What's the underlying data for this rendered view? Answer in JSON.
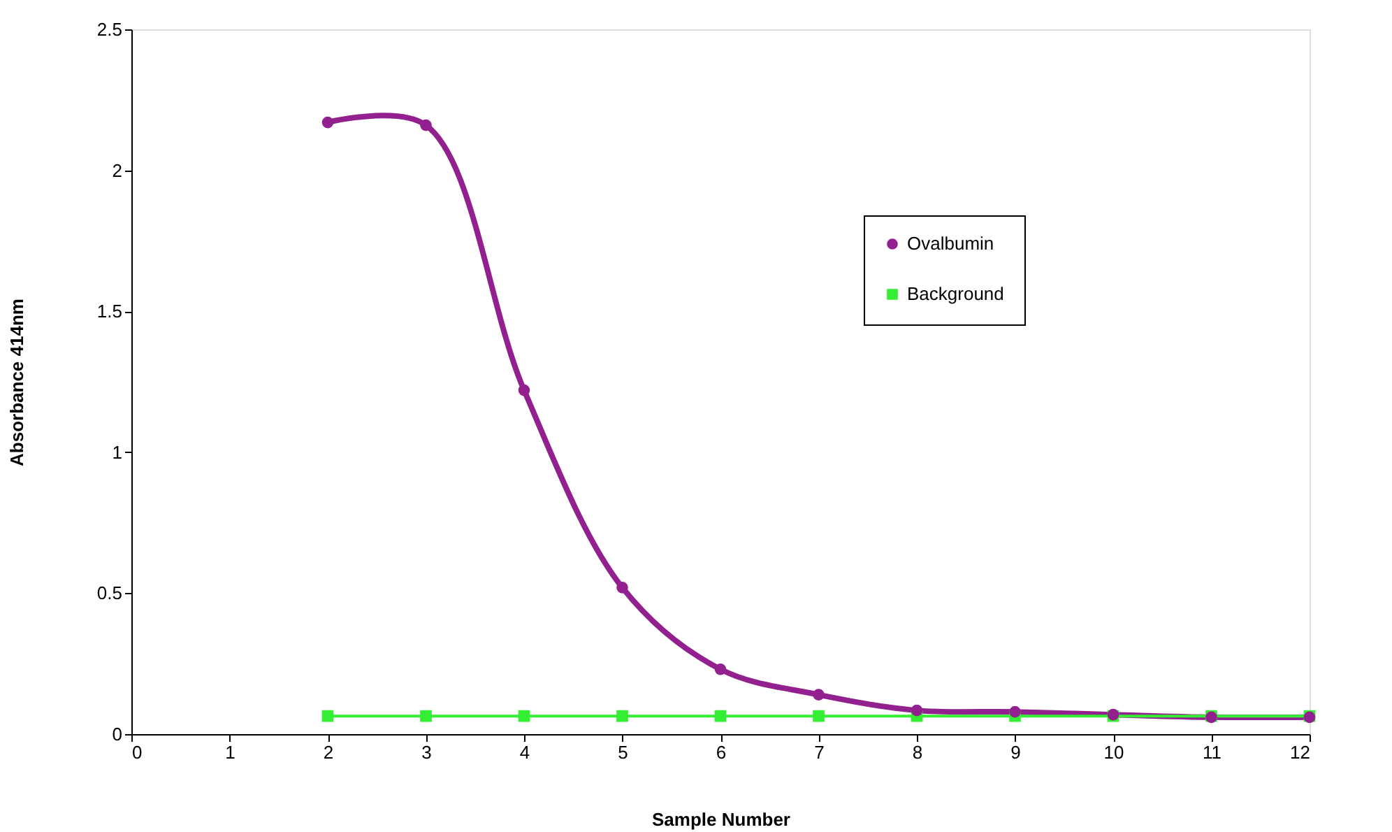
{
  "chart_data": {
    "type": "line",
    "xlabel": "Sample Number",
    "ylabel": "Absorbance 414nm",
    "x": [
      2,
      3,
      4,
      5,
      6,
      7,
      8,
      9,
      10,
      11,
      12
    ],
    "series": [
      {
        "name": "Ovalbumin",
        "color": "#93208f",
        "marker": "circle",
        "values": [
          2.17,
          2.16,
          1.22,
          0.52,
          0.23,
          0.14,
          0.084,
          0.079,
          0.069,
          0.06,
          0.06
        ]
      },
      {
        "name": "Background",
        "color": "#33ee33",
        "marker": "square",
        "values": [
          0.064,
          0.064,
          0.064,
          0.064,
          0.064,
          0.064,
          0.064,
          0.064,
          0.064,
          0.064,
          0.064
        ]
      }
    ],
    "xlim": [
      0,
      12
    ],
    "xticks": [
      0,
      1,
      2,
      3,
      4,
      5,
      6,
      7,
      8,
      9,
      10,
      11,
      12
    ],
    "ylim": [
      0,
      2.5
    ],
    "yticks": [
      0,
      0.5,
      1,
      1.5,
      2,
      2.5
    ],
    "grid": false,
    "legend": "right",
    "line_style": "solid"
  }
}
